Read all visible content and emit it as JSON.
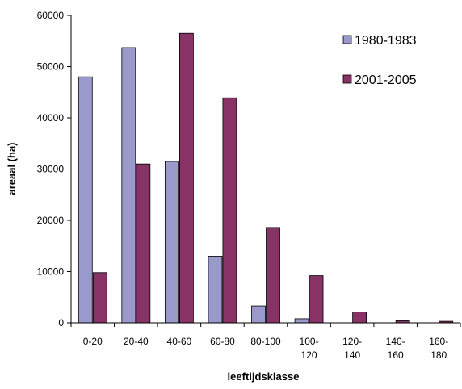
{
  "chart_data": {
    "type": "bar",
    "title": "",
    "xlabel": "leeftijdsklasse",
    "ylabel": "areaal (ha)",
    "ylim": [
      0,
      60000
    ],
    "yticks": [
      0,
      10000,
      20000,
      30000,
      40000,
      50000,
      60000
    ],
    "grid": false,
    "legend": "top-right",
    "categories": [
      [
        "0-20"
      ],
      [
        "20-40"
      ],
      [
        "40-60"
      ],
      [
        "60-80"
      ],
      [
        "80-100"
      ],
      [
        "100-",
        "120"
      ],
      [
        "120-",
        "140"
      ],
      [
        "140-",
        "160"
      ],
      [
        "160-",
        "180"
      ]
    ],
    "series": [
      {
        "name": "1980-1983",
        "color": "#9999cc",
        "values": [
          48000,
          53700,
          31500,
          13000,
          3300,
          800,
          0,
          0,
          0
        ]
      },
      {
        "name": "2001-2005",
        "color": "#883366",
        "values": [
          9800,
          31000,
          56500,
          43900,
          18600,
          9200,
          2100,
          400,
          300
        ]
      }
    ]
  }
}
